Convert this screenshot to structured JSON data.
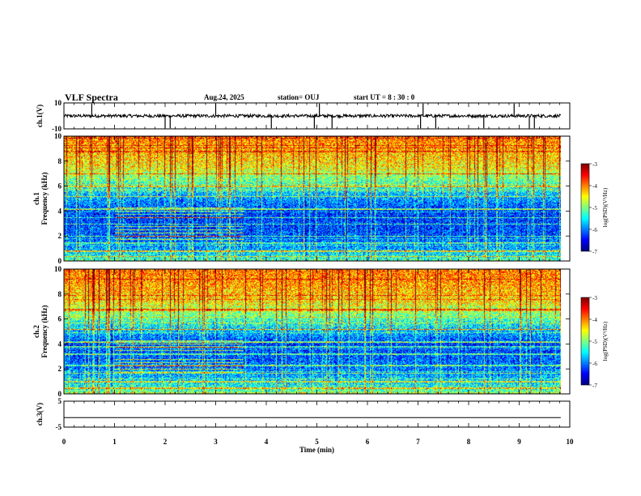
{
  "header": {
    "title": "VLF Spectra",
    "date": "Aug.24, 2025",
    "station": "station= OUJ",
    "start_ut": "start  UT =   8  : 30 : 0"
  },
  "panels": {
    "ch1_wave_label": "ch.1(V)",
    "ch1_spec_label": "ch.1\nFrequency (kHz)",
    "ch2_spec_label": "ch.2\nFrequency (kHz)",
    "ch3_wave_label": "ch.3(V)",
    "ch1_label_a": "ch.1",
    "ch2_label_a": "ch.2",
    "freq_label": "Frequency (kHz)"
  },
  "xaxis": {
    "label": "Time (min)",
    "range": [
      0,
      10
    ],
    "ticks": [
      "0",
      "1",
      "2",
      "3",
      "4",
      "5",
      "6",
      "7",
      "8",
      "9",
      "10"
    ]
  },
  "colorbar": {
    "label": "log(PSD)(V²/Hz)",
    "range": [
      -7,
      -3
    ],
    "ticks": [
      "-3",
      "-4",
      "-5",
      "-6",
      "-7"
    ]
  },
  "colors": {
    "low": "#00007f",
    "mid_low": "#0080ff",
    "mid": "#00e0c0",
    "mid_high": "#a8f040",
    "high": "#ff2000"
  },
  "chart_data": [
    {
      "type": "line",
      "name": "ch1-waveform",
      "ylabel": "ch.1(V)",
      "ylim": [
        -10,
        10
      ],
      "yticks": [
        "10",
        "-10"
      ],
      "xlim": [
        0,
        9.8
      ],
      "baseline": 0,
      "noise_amplitude": 1.2,
      "spikes_min": [
        0.55,
        2.0,
        2.1,
        3.0,
        4.1,
        4.95,
        5.05,
        5.3,
        7.05,
        7.1,
        7.35,
        8.3,
        8.9,
        9.2,
        9.3
      ]
    },
    {
      "type": "heatmap",
      "name": "ch1-spectrogram",
      "ylabel": "Frequency (kHz)",
      "ylim": [
        0,
        10
      ],
      "yticks": [
        "0",
        "2",
        "4",
        "6",
        "8",
        "10"
      ],
      "xlim": [
        0,
        9.8
      ],
      "zlim": [
        -7,
        -3
      ],
      "z_profile": [
        {
          "freq_khz": 0,
          "log_psd": -5.2
        },
        {
          "freq_khz": 1,
          "log_psd": -5.8
        },
        {
          "freq_khz": 2,
          "log_psd": -6.2
        },
        {
          "freq_khz": 4,
          "log_psd": -6.3
        },
        {
          "freq_khz": 6,
          "log_psd": -5.4
        },
        {
          "freq_khz": 7.5,
          "log_psd": -4.5
        },
        {
          "freq_khz": 9,
          "log_psd": -4.2
        },
        {
          "freq_khz": 10,
          "log_psd": -4.0
        }
      ],
      "tone_lines_khz": [
        0.4,
        0.8,
        1.5,
        2.0,
        3.0,
        3.5,
        4.2,
        5.2,
        6.0,
        7.0
      ],
      "interference_window_min": [
        1.0,
        3.55
      ]
    },
    {
      "type": "heatmap",
      "name": "ch2-spectrogram",
      "ylabel": "Frequency (kHz)",
      "ylim": [
        0,
        10
      ],
      "yticks": [
        "0",
        "2",
        "4",
        "6",
        "8",
        "10"
      ],
      "xlim": [
        0,
        9.8
      ],
      "zlim": [
        -7,
        -3
      ],
      "z_profile": [
        {
          "freq_khz": 0,
          "log_psd": -5.0
        },
        {
          "freq_khz": 1,
          "log_psd": -5.6
        },
        {
          "freq_khz": 2,
          "log_psd": -6.0
        },
        {
          "freq_khz": 4,
          "log_psd": -6.3
        },
        {
          "freq_khz": 6,
          "log_psd": -5.2
        },
        {
          "freq_khz": 7.5,
          "log_psd": -4.4
        },
        {
          "freq_khz": 9,
          "log_psd": -4.1
        },
        {
          "freq_khz": 10,
          "log_psd": -4.0
        }
      ],
      "tone_lines_khz": [
        0.5,
        1.0,
        1.7,
        2.3,
        3.2,
        3.8,
        4.2,
        5.2,
        6.8
      ],
      "interference_window_min": [
        1.0,
        3.55
      ]
    },
    {
      "type": "line",
      "name": "ch3-waveform",
      "ylabel": "ch.3(V)",
      "ylim": [
        -5,
        5
      ],
      "yticks": [
        "5",
        "-5"
      ],
      "xlim": [
        0,
        9.8
      ],
      "baseline": -1.3,
      "noise_amplitude": 0
    }
  ]
}
